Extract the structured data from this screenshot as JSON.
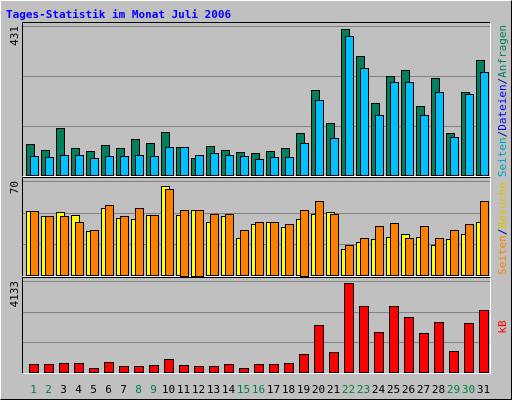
{
  "title": "Tages-Statistik im Monat Juli 2006",
  "chart_data": [
    {
      "type": "bar",
      "ylim": [
        0,
        431
      ],
      "yticks": [
        431
      ],
      "legend": [
        {
          "text": "Seiten",
          "color": "#00a0c0"
        },
        {
          "text": "/",
          "color": "#000080"
        },
        {
          "text": "Dateien",
          "color": "#0000ff"
        },
        {
          "text": "/",
          "color": "#000080"
        },
        {
          "text": "Anfragen",
          "color": "#00805c"
        }
      ],
      "series": [
        {
          "color": "#00805c",
          "values": [
            92,
            75,
            138,
            80,
            72,
            89,
            80,
            106,
            95,
            126,
            83,
            52,
            86,
            75,
            69,
            66,
            72,
            80,
            124,
            247,
            152,
            422,
            345,
            210,
            287,
            305,
            201,
            282,
            124,
            241,
            333
          ]
        },
        {
          "color": "#00c0ff",
          "values": [
            57,
            55,
            60,
            60,
            52,
            57,
            57,
            60,
            57,
            83,
            83,
            60,
            66,
            60,
            57,
            49,
            55,
            55,
            95,
            218,
            109,
            402,
            310,
            175,
            270,
            270,
            175,
            241,
            112,
            236,
            299
          ]
        }
      ]
    },
    {
      "type": "bar",
      "ylim": [
        0,
        70
      ],
      "yticks": [
        70
      ],
      "legend": [
        {
          "text": "Seiten",
          "color": "#ff8000"
        },
        {
          "text": "/",
          "color": "#000080"
        },
        {
          "text": "Besuche",
          "color": "#e0c000"
        }
      ],
      "series": [
        {
          "color": "#ffff00",
          "values": [
            48,
            44,
            47,
            45,
            33,
            50,
            43,
            42,
            45,
            66,
            45,
            49,
            40,
            44,
            28,
            38,
            40,
            36,
            42,
            46,
            47,
            20,
            25,
            27,
            29,
            31,
            29,
            23,
            27,
            31,
            40
          ]
        },
        {
          "color": "#ff8000",
          "values": [
            48,
            44,
            44,
            40,
            34,
            52,
            44,
            50,
            45,
            64,
            49,
            49,
            46,
            46,
            34,
            40,
            40,
            38,
            49,
            55,
            46,
            23,
            28,
            37,
            39,
            28,
            37,
            28,
            34,
            38,
            55
          ]
        }
      ]
    },
    {
      "type": "bar",
      "ylim": [
        0,
        4133
      ],
      "yticks": [
        4133
      ],
      "legend": [
        {
          "text": "kB",
          "color": "#ff0000"
        }
      ],
      "series": [
        {
          "color": "#ff0000",
          "values": [
            404,
            404,
            450,
            450,
            225,
            495,
            315,
            315,
            360,
            630,
            360,
            315,
            315,
            404,
            225,
            404,
            404,
            450,
            855,
            2156,
            945,
            4043,
            3010,
            1842,
            3010,
            2516,
            1797,
            2291,
            990,
            2246,
            2830
          ]
        }
      ],
      "categories": [
        "1",
        "2",
        "3",
        "4",
        "5",
        "6",
        "7",
        "8",
        "9",
        "10",
        "11",
        "12",
        "13",
        "14",
        "15",
        "16",
        "17",
        "18",
        "19",
        "20",
        "21",
        "22",
        "23",
        "24",
        "25",
        "26",
        "27",
        "28",
        "29",
        "30",
        "31"
      ],
      "category_colors": [
        "#008040",
        "#008040",
        "#000000",
        "#000000",
        "#000000",
        "#000000",
        "#000000",
        "#008040",
        "#008040",
        "#000000",
        "#000000",
        "#000000",
        "#000000",
        "#000000",
        "#008040",
        "#008040",
        "#000000",
        "#000000",
        "#000000",
        "#000000",
        "#000000",
        "#008040",
        "#008040",
        "#000000",
        "#000000",
        "#000000",
        "#000000",
        "#000000",
        "#008040",
        "#008040",
        "#000000"
      ]
    }
  ]
}
